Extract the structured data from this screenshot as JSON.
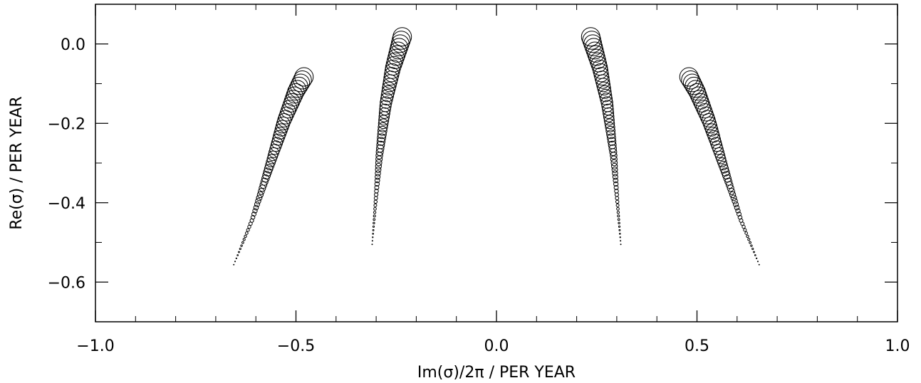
{
  "chart_data": {
    "type": "scatter",
    "title": "",
    "xlabel": "Im(σ)/2π / PER YEAR",
    "ylabel": "Re(σ) / PER YEAR",
    "xlim": [
      -1.0,
      1.0
    ],
    "ylim": [
      -0.7,
      0.1
    ],
    "x_ticks": [
      {
        "value": -1.0,
        "label": "−1.0"
      },
      {
        "value": -0.5,
        "label": "−0.5"
      },
      {
        "value": 0.0,
        "label": "0.0"
      },
      {
        "value": 0.5,
        "label": "0.5"
      },
      {
        "value": 1.0,
        "label": "1.0"
      }
    ],
    "y_ticks": [
      {
        "value": 0.0,
        "label": "0.0"
      },
      {
        "value": -0.2,
        "label": "−0.2"
      },
      {
        "value": -0.4,
        "label": "−0.4"
      },
      {
        "value": -0.6,
        "label": "−0.6"
      }
    ],
    "marker": "open-circle",
    "marker_size_meaning": "circle size grows along each branch toward the top end",
    "grid": false,
    "series": [
      {
        "points": [
          [
            -0.655,
            -0.556
          ],
          [
            -0.61,
            -0.445
          ],
          [
            -0.565,
            -0.305
          ],
          [
            -0.53,
            -0.195
          ],
          [
            -0.5,
            -0.12
          ],
          [
            -0.48,
            -0.083
          ]
        ]
      },
      {
        "points": [
          [
            -0.31,
            -0.505
          ],
          [
            -0.302,
            -0.405
          ],
          [
            -0.292,
            -0.28
          ],
          [
            -0.276,
            -0.15
          ],
          [
            -0.258,
            -0.06
          ],
          [
            -0.235,
            0.018
          ]
        ]
      },
      {
        "points": [
          [
            0.31,
            -0.505
          ],
          [
            0.302,
            -0.405
          ],
          [
            0.292,
            -0.28
          ],
          [
            0.276,
            -0.15
          ],
          [
            0.258,
            -0.06
          ],
          [
            0.235,
            0.018
          ]
        ]
      },
      {
        "points": [
          [
            0.655,
            -0.556
          ],
          [
            0.61,
            -0.445
          ],
          [
            0.565,
            -0.305
          ],
          [
            0.53,
            -0.195
          ],
          [
            0.5,
            -0.12
          ],
          [
            0.48,
            -0.083
          ]
        ]
      }
    ]
  }
}
